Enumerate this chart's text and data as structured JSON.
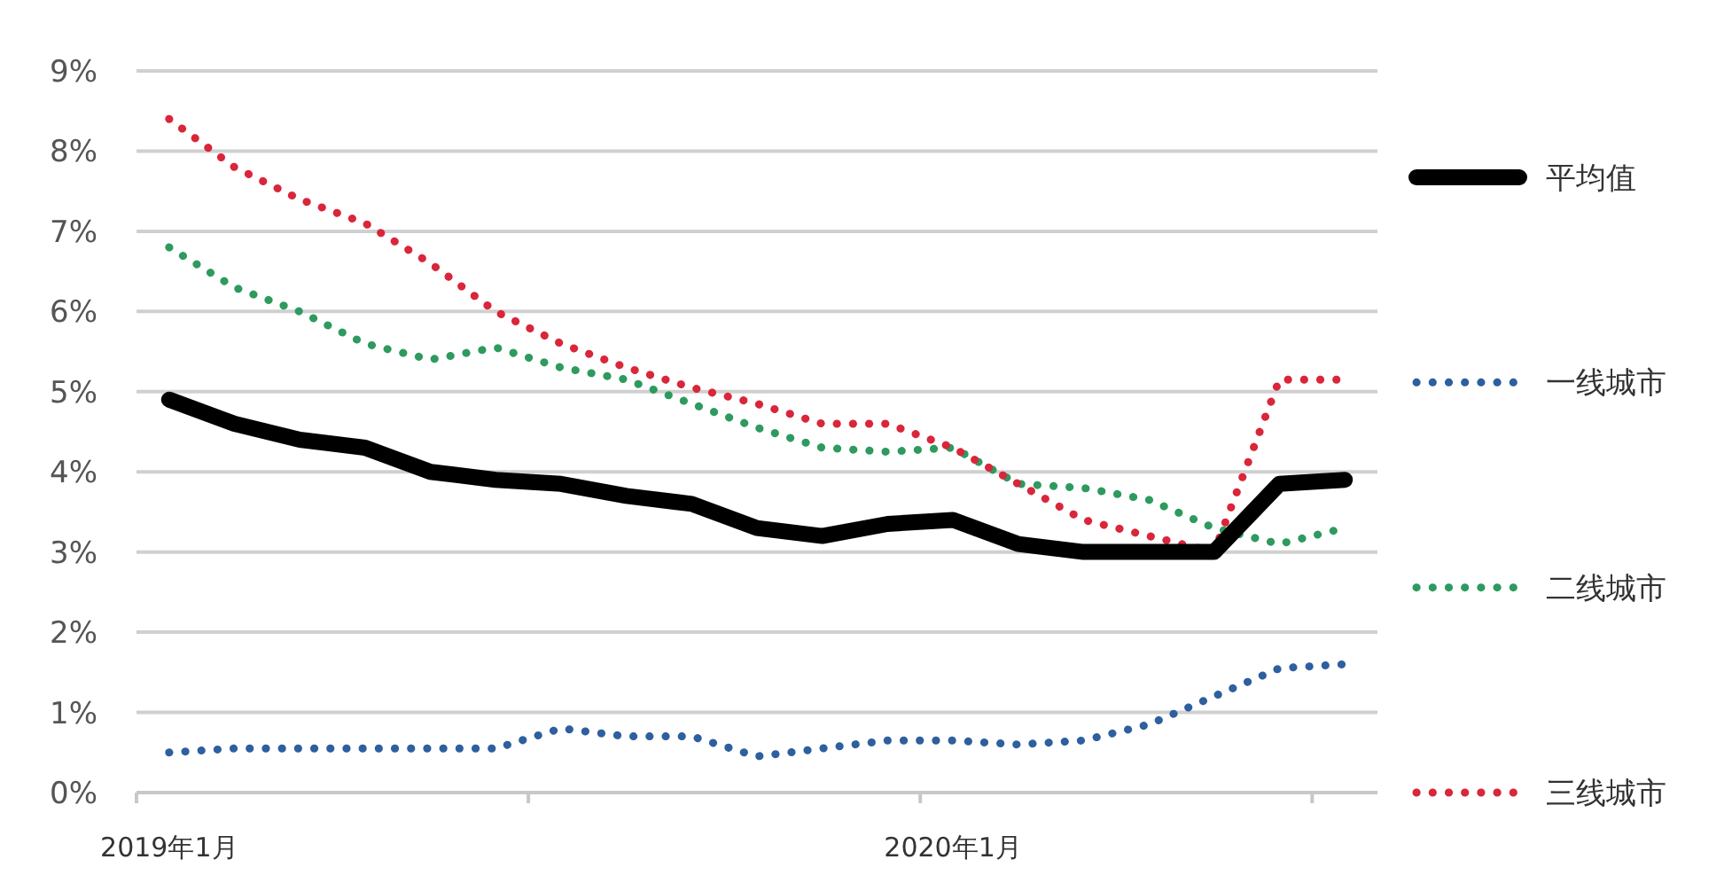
{
  "chart_data": {
    "type": "line",
    "categories": [
      "2019年1月",
      null,
      null,
      null,
      null,
      null,
      null,
      null,
      null,
      null,
      null,
      null,
      "2020年1月",
      null,
      null,
      null,
      null,
      null,
      null
    ],
    "ylim": [
      0,
      9
    ],
    "yticks": [
      {
        "value": 0,
        "label": "0%"
      },
      {
        "value": 1,
        "label": "1%"
      },
      {
        "value": 2,
        "label": "2%"
      },
      {
        "value": 3,
        "label": "3%"
      },
      {
        "value": 4,
        "label": "4%"
      },
      {
        "value": 5,
        "label": "5%"
      },
      {
        "value": 6,
        "label": "6%"
      },
      {
        "value": 7,
        "label": "7%"
      },
      {
        "value": 8,
        "label": "8%"
      },
      {
        "value": 9,
        "label": "9%"
      }
    ],
    "grid": "y",
    "legend": "right",
    "series": [
      {
        "name": "平均值",
        "color": "#000000",
        "line_style": "solid",
        "values": [
          4.9,
          4.6,
          4.4,
          4.3,
          4.0,
          3.9,
          3.85,
          3.7,
          3.6,
          3.3,
          3.2,
          3.35,
          3.4,
          3.1,
          3.0,
          3.0,
          3.0,
          3.85,
          3.9
        ]
      },
      {
        "name": "一线城市",
        "color": "#2e5f9e",
        "line_style": "dotted",
        "values": [
          0.5,
          0.55,
          0.55,
          0.55,
          0.55,
          0.55,
          0.8,
          0.7,
          0.7,
          0.45,
          0.55,
          0.65,
          0.65,
          0.6,
          0.65,
          0.85,
          1.2,
          1.55,
          1.6
        ]
      },
      {
        "name": "二线城市",
        "color": "#2e9a5e",
        "line_style": "dotted",
        "values": [
          6.8,
          6.3,
          6.0,
          5.6,
          5.4,
          5.55,
          5.3,
          5.15,
          4.85,
          4.55,
          4.3,
          4.25,
          4.3,
          3.85,
          3.8,
          3.65,
          3.3,
          3.1,
          3.3
        ]
      },
      {
        "name": "三线城市",
        "color": "#d9263a",
        "line_style": "dotted",
        "values": [
          8.4,
          7.8,
          7.4,
          7.1,
          6.6,
          6.0,
          5.6,
          5.3,
          5.05,
          4.85,
          4.6,
          4.6,
          4.3,
          3.85,
          3.4,
          3.2,
          3.0,
          5.15,
          5.15
        ]
      }
    ]
  }
}
